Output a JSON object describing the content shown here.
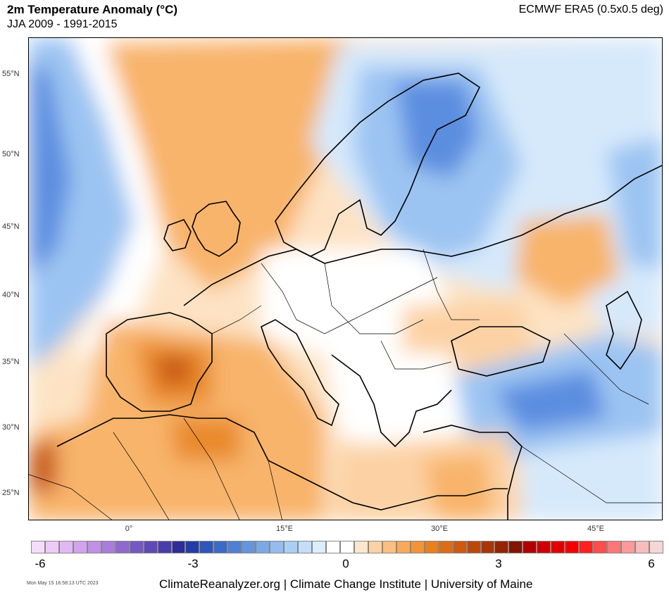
{
  "header": {
    "title": "2m Temperature Anomaly (°C)",
    "subtitle": "JJA 2009 - 1991-2015",
    "source": "ECMWF ERA5 (0.5x0.5 deg)"
  },
  "map": {
    "lat_labels": [
      "55°N",
      "50°N",
      "45°N",
      "40°N",
      "35°N",
      "30°N",
      "25°N"
    ],
    "lon_labels": [
      "0°",
      "15°E",
      "30°E",
      "45°E"
    ],
    "colors": {
      "cold_strong": "#5b8ee0",
      "cold": "#9cc4f2",
      "cold_light": "#d6e9fb",
      "neutral": "#ffffff",
      "warm_light": "#fde3c4",
      "warm": "#f8b46a",
      "warm_strong": "#e98a2a",
      "hot": "#c85a12"
    }
  },
  "colorbar": {
    "colors": [
      "#f6dcfb",
      "#eecaf8",
      "#e2b8f4",
      "#d2a4ef",
      "#c08fe8",
      "#a97ddc",
      "#8f69cf",
      "#7559c2",
      "#5f49b6",
      "#4a3caa",
      "#2d2c98",
      "#243ca8",
      "#2f56b8",
      "#3c6bc7",
      "#4f80d3",
      "#6495dd",
      "#7aa9e6",
      "#92bdee",
      "#a9cff4",
      "#c2def8",
      "#dcedfb",
      "#ffffff",
      "#ffffff",
      "#fde7cc",
      "#fcd2a4",
      "#fbbf7f",
      "#f9a95a",
      "#f39436",
      "#e9801f",
      "#dc6c16",
      "#cc5a10",
      "#bb480b",
      "#a83607",
      "#942404",
      "#801502",
      "#b10000",
      "#cc0000",
      "#e00000",
      "#f20000",
      "#ff2020",
      "#ff4d4d",
      "#fd7777",
      "#fa9a9a",
      "#f8bcbc",
      "#f7d6d6"
    ],
    "ticks": [
      "-6",
      "-3",
      "0",
      "3",
      "6"
    ]
  },
  "footer": {
    "timestamp": "Mon May 15 16:58:13 UTC 2023",
    "credit": "ClimateReanalyzer.org | Climate Change Institute | University of Maine"
  }
}
